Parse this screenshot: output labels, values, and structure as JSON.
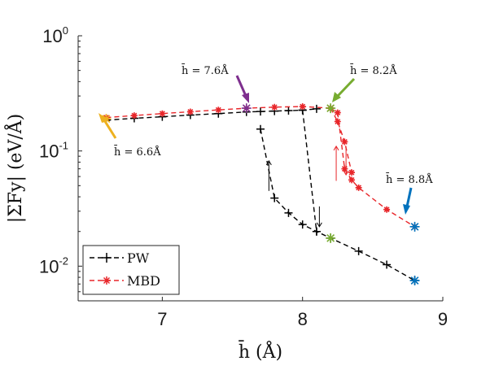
{
  "chart_data": {
    "type": "line",
    "x_scale": "linear",
    "y_scale": "log",
    "xlim": [
      6.4,
      9.0
    ],
    "ylim": [
      0.005,
      1.0
    ],
    "x_ticks": [
      7,
      8,
      9
    ],
    "x_tick_labels": [
      "7",
      "8",
      "9"
    ],
    "y_ticks": [
      0.01,
      0.1,
      1.0
    ],
    "y_tick_labels": [
      {
        "base": "10",
        "exp": "-2"
      },
      {
        "base": "10",
        "exp": "-1"
      },
      {
        "base": "10",
        "exp": "0"
      }
    ],
    "xlabel": "h̄ (Å)",
    "ylabel": "|ΣFy| (eV/Å)",
    "grid": false,
    "legend_position": "bottom-left",
    "series": [
      {
        "name": "PW",
        "color": "#000000",
        "marker": "+",
        "line": "dashed",
        "segments": [
          {
            "x": [
              6.6,
              6.8,
              7.0,
              7.2,
              7.4,
              7.6,
              7.7,
              7.8,
              7.9,
              8.0,
              8.1
            ],
            "y": [
              0.185,
              0.192,
              0.198,
              0.205,
              0.211,
              0.218,
              0.22,
              0.222,
              0.224,
              0.226,
              0.232
            ]
          },
          {
            "x": [
              7.7,
              7.8,
              7.9,
              8.0,
              8.1,
              8.2,
              8.4,
              8.6,
              8.8
            ],
            "y": [
              0.155,
              0.039,
              0.029,
              0.023,
              0.02,
              0.0175,
              0.0135,
              0.0103,
              0.0075
            ]
          },
          {
            "x": [
              8.0,
              8.1
            ],
            "y": [
              0.226,
              0.02
            ]
          }
        ]
      },
      {
        "name": "MBD",
        "color": "#e8262a",
        "marker": "*",
        "line": "dashed",
        "segments": [
          {
            "x": [
              6.6,
              6.8,
              7.0,
              7.2,
              7.4,
              7.6,
              7.8,
              8.0,
              8.2
            ],
            "y": [
              0.195,
              0.203,
              0.211,
              0.219,
              0.227,
              0.235,
              0.24,
              0.243,
              0.235
            ]
          },
          {
            "x": [
              8.2,
              8.25,
              8.3,
              8.35,
              8.4,
              8.6,
              8.8
            ],
            "y": [
              0.235,
              0.215,
              0.07,
              0.056,
              0.048,
              0.031,
              0.022
            ]
          },
          {
            "x": [
              8.2,
              8.25,
              8.3,
              8.35
            ],
            "y": [
              0.235,
              0.18,
              0.12,
              0.065
            ]
          }
        ]
      }
    ],
    "highlighted_points": [
      {
        "x": 6.6,
        "y": 0.19,
        "color": "#edb120",
        "label": "h̄ = 6.6Å"
      },
      {
        "x": 7.6,
        "y": 0.235,
        "color": "#7e2f8e",
        "label": "h̄ = 7.6Å"
      },
      {
        "x": 8.2,
        "y": 0.235,
        "color": "#77ac30",
        "label": "h̄ = 8.2Å"
      },
      {
        "x": 8.2,
        "y": 0.0175,
        "color": "#77ac30",
        "label": ""
      },
      {
        "x": 8.8,
        "y": 0.022,
        "color": "#0072bd",
        "label": "h̄ = 8.8Å"
      },
      {
        "x": 8.8,
        "y": 0.0075,
        "color": "#0072bd",
        "label": ""
      }
    ],
    "direction_arrows": [
      {
        "color": "#000000",
        "x": 7.76,
        "y_from": 0.045,
        "y_to": 0.082
      },
      {
        "color": "#000000",
        "x": 8.12,
        "y_from": 0.033,
        "y_to": 0.022
      },
      {
        "color": "#e8262a",
        "x": 8.24,
        "y_from": 0.055,
        "y_to": 0.11
      },
      {
        "color": "#e8262a",
        "x": 8.31,
        "y_from": 0.11,
        "y_to": 0.062
      }
    ]
  },
  "annotations": [
    {
      "text": "h̄ = 6.6Å",
      "color": "#edb120"
    },
    {
      "text": "h̄ = 7.6Å",
      "color": "#7e2f8e"
    },
    {
      "text": "h̄ = 8.2Å",
      "color": "#77ac30"
    },
    {
      "text": "h̄ = 8.8Å",
      "color": "#0072bd"
    }
  ],
  "legend": {
    "items": [
      {
        "label": "PW",
        "color": "#000000",
        "marker": "+"
      },
      {
        "label": "MBD",
        "color": "#e8262a",
        "marker": "*"
      }
    ]
  }
}
